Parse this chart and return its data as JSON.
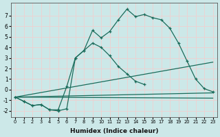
{
  "xlabel": "Humidex (Indice chaleur)",
  "bg_color": "#cce8e8",
  "grid_color": "#f0d0d0",
  "line_color": "#1a6b5a",
  "xlim": [
    -0.5,
    23.5
  ],
  "ylim": [
    -2.6,
    8.2
  ],
  "xticks": [
    0,
    1,
    2,
    3,
    4,
    5,
    6,
    7,
    8,
    9,
    10,
    11,
    12,
    13,
    14,
    15,
    16,
    17,
    18,
    19,
    20,
    21,
    22,
    23
  ],
  "yticks": [
    -2,
    -1,
    0,
    1,
    2,
    3,
    4,
    5,
    6,
    7
  ],
  "curve1": [
    [
      0,
      -0.7
    ],
    [
      1,
      -1.1
    ],
    [
      2,
      -1.5
    ],
    [
      3,
      -1.4
    ],
    [
      4,
      -1.9
    ],
    [
      5,
      -1.9
    ],
    [
      6,
      0.3
    ],
    [
      7,
      3.0
    ],
    [
      8,
      3.7
    ],
    [
      9,
      5.6
    ],
    [
      10,
      4.9
    ],
    [
      11,
      5.5
    ],
    [
      12,
      6.6
    ],
    [
      13,
      7.6
    ],
    [
      14,
      6.9
    ],
    [
      15,
      7.1
    ],
    [
      16,
      6.8
    ],
    [
      17,
      6.6
    ],
    [
      18,
      5.8
    ],
    [
      19,
      4.4
    ],
    [
      20,
      2.7
    ],
    [
      21,
      1.0
    ],
    [
      22,
      0.1
    ],
    [
      23,
      -0.2
    ]
  ],
  "curve2": [
    [
      0,
      -0.7
    ],
    [
      1,
      -1.1
    ],
    [
      2,
      -1.5
    ],
    [
      3,
      -1.4
    ],
    [
      4,
      -1.9
    ],
    [
      5,
      -2.0
    ],
    [
      6,
      -1.8
    ],
    [
      7,
      3.0
    ],
    [
      8,
      3.7
    ],
    [
      9,
      4.4
    ],
    [
      10,
      4.0
    ],
    [
      11,
      3.2
    ],
    [
      12,
      2.2
    ],
    [
      13,
      1.5
    ],
    [
      14,
      0.8
    ],
    [
      15,
      0.5
    ]
  ],
  "line1": [
    [
      0,
      -0.7
    ],
    [
      23,
      -0.3
    ]
  ],
  "line2": [
    [
      0,
      -0.7
    ],
    [
      23,
      2.6
    ]
  ],
  "line3": [
    [
      0,
      -0.7
    ],
    [
      23,
      -0.8
    ]
  ]
}
